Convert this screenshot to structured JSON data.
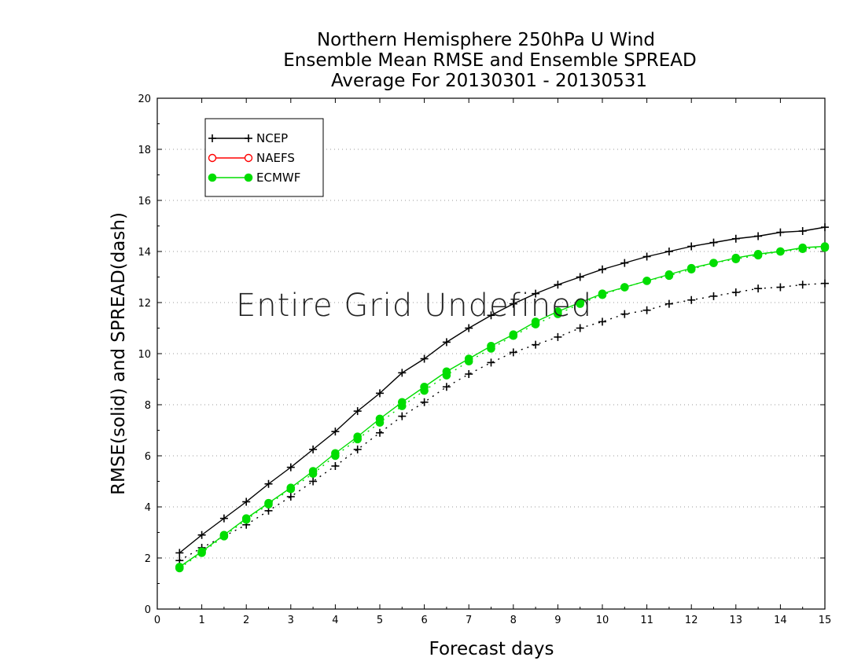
{
  "chart_data": {
    "type": "line",
    "title": [
      "Northern Hemisphere 250hPa U Wind",
      "Ensemble Mean RMSE and Ensemble SPREAD",
      "Average For 20130301 - 20130531"
    ],
    "xlabel": "Forecast days",
    "ylabel": "RMSE(solid) and SPREAD(dash)",
    "xlim": [
      0,
      15
    ],
    "ylim": [
      0,
      20
    ],
    "xticks": [
      0,
      1,
      2,
      3,
      4,
      5,
      6,
      7,
      8,
      9,
      10,
      11,
      12,
      13,
      14,
      15
    ],
    "yticks": [
      0,
      2,
      4,
      6,
      8,
      10,
      12,
      14,
      16,
      18,
      20
    ],
    "grid": "horizontal dotted",
    "legend_position": "top-left",
    "overlay_text": "Entire Grid Undefined",
    "x": [
      0.5,
      1,
      1.5,
      2,
      2.5,
      3,
      3.5,
      4,
      4.5,
      5,
      5.5,
      6,
      6.5,
      7,
      7.5,
      8,
      8.5,
      9,
      9.5,
      10,
      10.5,
      11,
      11.5,
      12,
      12.5,
      13,
      13.5,
      14,
      14.5,
      15
    ],
    "series": [
      {
        "name": "NCEP",
        "color": "#000000",
        "marker": "plus",
        "rmse": [
          2.2,
          2.9,
          3.55,
          4.2,
          4.9,
          5.55,
          6.25,
          6.95,
          7.75,
          8.45,
          9.25,
          9.8,
          10.45,
          11.0,
          11.5,
          11.95,
          12.35,
          12.7,
          13.0,
          13.3,
          13.55,
          13.8,
          14.0,
          14.2,
          14.35,
          14.5,
          14.6,
          14.75,
          14.8,
          14.95
        ],
        "spread": [
          1.9,
          2.4,
          2.85,
          3.3,
          3.85,
          4.4,
          5.0,
          5.6,
          6.25,
          6.9,
          7.55,
          8.1,
          8.7,
          9.2,
          9.65,
          10.05,
          10.35,
          10.65,
          11.0,
          11.25,
          11.55,
          11.7,
          11.95,
          12.1,
          12.25,
          12.4,
          12.55,
          12.6,
          12.7,
          12.75
        ]
      },
      {
        "name": "NAEFS",
        "color": "#ff0000",
        "marker": "open-circle",
        "rmse": [],
        "spread": []
      },
      {
        "name": "ECMWF",
        "color": "#00dd00",
        "marker": "filled-circle",
        "rmse": [
          1.65,
          2.25,
          2.9,
          3.55,
          4.15,
          4.75,
          5.4,
          6.1,
          6.75,
          7.45,
          8.1,
          8.7,
          9.3,
          9.8,
          10.3,
          10.75,
          11.25,
          11.65,
          12.0,
          12.35,
          12.6,
          12.85,
          13.1,
          13.35,
          13.55,
          13.75,
          13.9,
          14.0,
          14.15,
          14.2
        ],
        "spread": [
          1.6,
          2.2,
          2.85,
          3.5,
          4.1,
          4.7,
          5.3,
          6.0,
          6.65,
          7.3,
          7.95,
          8.55,
          9.15,
          9.7,
          10.2,
          10.7,
          11.15,
          11.55,
          11.95,
          12.3,
          12.6,
          12.85,
          13.05,
          13.3,
          13.55,
          13.7,
          13.85,
          14.0,
          14.1,
          14.15
        ]
      }
    ]
  }
}
